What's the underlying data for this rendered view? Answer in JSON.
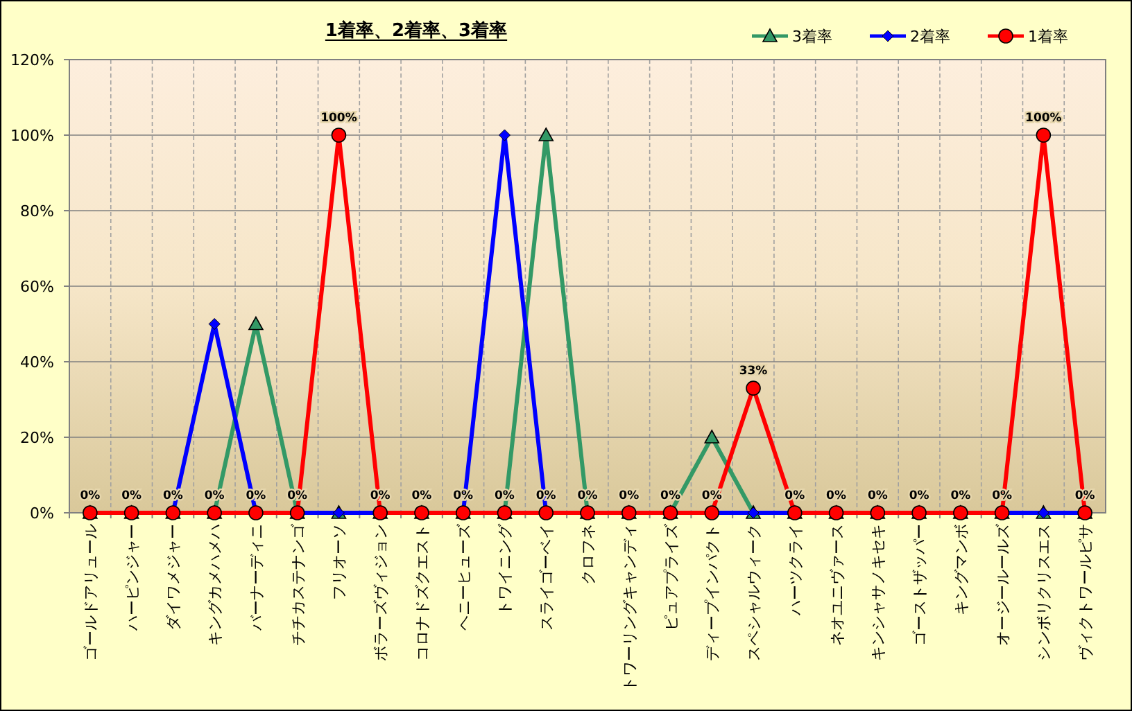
{
  "chart_data": {
    "type": "line",
    "title": "1着率、2着率、3着率",
    "categories": [
      "ゴールドアリュール",
      "ハーピンジャー",
      "ダイワメジャー",
      "キングカメハメハ",
      "バーナーディニ",
      "チチカステナンゴ",
      "フリオーソ",
      "ボラーズヴィジョン",
      "コロナドズクエスト",
      "ヘニーヒューズ",
      "トワイニング",
      "スライゴーベイ",
      "クロフネ",
      "トワーリングキャンディ",
      "ピュアプライズ",
      "ディープインパクト",
      "スペシャルウィーク",
      "ハーツクライ",
      "ネオユニヴァース",
      "キンシャサノキセキ",
      "ゴーストザッパー",
      "キングマンボ",
      "オージールールズ",
      "シンボリクリスエス",
      "ヴィクトワールピサ"
    ],
    "series": [
      {
        "name": "3着率",
        "color": "#339966",
        "marker": "triangle",
        "values": [
          0,
          0,
          0,
          0,
          50,
          0,
          0,
          0,
          0,
          0,
          0,
          100,
          0,
          0,
          0,
          20,
          0,
          0,
          0,
          0,
          0,
          0,
          0,
          0,
          0
        ]
      },
      {
        "name": "2着率",
        "color": "#0000ff",
        "marker": "diamond",
        "values": [
          0,
          0,
          0,
          50,
          0,
          0,
          0,
          0,
          0,
          0,
          100,
          0,
          0,
          0,
          0,
          0,
          0,
          0,
          0,
          0,
          0,
          0,
          0,
          0,
          0
        ]
      },
      {
        "name": "1着率",
        "color": "#ff0000",
        "marker": "circle",
        "values": [
          0,
          0,
          0,
          0,
          0,
          0,
          100,
          0,
          0,
          0,
          0,
          0,
          0,
          0,
          0,
          0,
          33,
          0,
          0,
          0,
          0,
          0,
          0,
          100,
          0
        ],
        "value_labels": [
          "0%",
          "0%",
          "0%",
          "0%",
          "0%",
          "0%",
          "100%",
          "0%",
          "0%",
          "0%",
          "0%",
          "0%",
          "0%",
          "0%",
          "0%",
          "0%",
          "33%",
          "0%",
          "0%",
          "0%",
          "0%",
          "0%",
          "0%",
          "100%",
          "0%"
        ]
      }
    ],
    "ylim": [
      0,
      120
    ],
    "yticks": [
      {
        "value": 0,
        "label": "0%"
      },
      {
        "value": 20,
        "label": "20%"
      },
      {
        "value": 40,
        "label": "40%"
      },
      {
        "value": 60,
        "label": "60%"
      },
      {
        "value": 80,
        "label": "80%"
      },
      {
        "value": 100,
        "label": "100%"
      },
      {
        "value": 120,
        "label": "120%"
      }
    ],
    "grid": true,
    "legend": "top right"
  }
}
